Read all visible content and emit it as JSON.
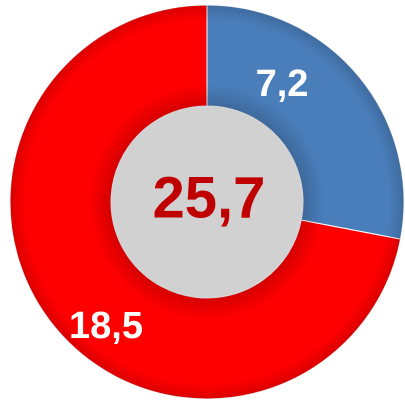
{
  "chart_data": {
    "type": "donut",
    "categories": [
      null,
      null
    ],
    "values": [
      7.2,
      18.5
    ],
    "value_labels": [
      "7,2",
      "18,5"
    ],
    "colors": [
      "#4a7ebb",
      "#ff0000"
    ],
    "center_label": "25,7"
  }
}
